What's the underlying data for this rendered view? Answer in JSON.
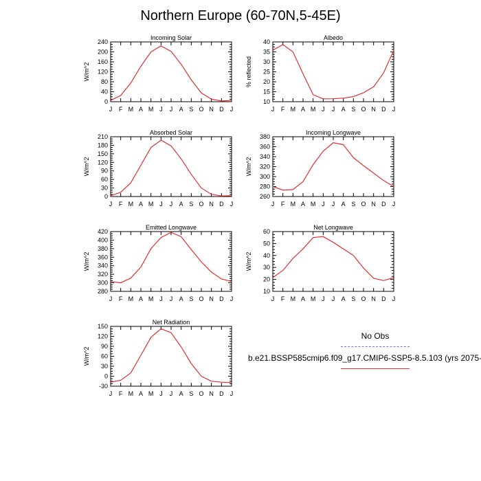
{
  "title": "Northern Europe (60-70N,5-45E)",
  "legend": {
    "obs_label": "No Obs",
    "case_label": "b.e21.BSSP585cmip6.f09_g17.CMIP6-SSP5-8.5.103 (yrs 2075-",
    "obs_color": "#6b6bff",
    "case_color": "#e03030"
  },
  "month_labels": [
    "J",
    "F",
    "M",
    "A",
    "M",
    "J",
    "J",
    "A",
    "S",
    "O",
    "N",
    "D",
    "J"
  ],
  "chart_data": [
    {
      "type": "line",
      "title": "Incoming Solar",
      "ylabel": "W/m^2",
      "ylim": [
        0,
        240
      ],
      "yticks": [
        0,
        40,
        80,
        120,
        160,
        200,
        240
      ],
      "values": [
        5,
        25,
        75,
        142,
        200,
        224,
        202,
        150,
        88,
        35,
        10,
        3,
        5
      ]
    },
    {
      "type": "line",
      "title": "Albedo",
      "ylabel": "% reflected",
      "ylim": [
        10,
        40
      ],
      "yticks": [
        10,
        15,
        20,
        25,
        30,
        35,
        40
      ],
      "values": [
        35.8,
        38.7,
        35.0,
        24.0,
        13.5,
        11.4,
        11.5,
        11.8,
        12.6,
        14.5,
        17.5,
        24.5,
        35.8
      ]
    },
    {
      "type": "line",
      "title": "Absorbed Solar",
      "ylabel": "W/m^2",
      "ylim": [
        0,
        210
      ],
      "yticks": [
        0,
        30,
        60,
        90,
        120,
        150,
        180,
        210
      ],
      "values": [
        3,
        15,
        48,
        110,
        172,
        198,
        178,
        132,
        78,
        30,
        8,
        2,
        3
      ]
    },
    {
      "type": "line",
      "title": "Incoming Longwave",
      "ylabel": "W/m^2",
      "ylim": [
        260,
        380
      ],
      "yticks": [
        260,
        280,
        300,
        320,
        340,
        360,
        380
      ],
      "values": [
        280,
        273,
        274,
        290,
        324,
        351,
        368,
        364,
        338,
        322,
        307,
        292,
        280
      ]
    },
    {
      "type": "line",
      "title": "Emitted Longwave",
      "ylabel": "W/m^2",
      "ylim": [
        280,
        420
      ],
      "yticks": [
        280,
        300,
        320,
        340,
        360,
        380,
        400,
        420
      ],
      "values": [
        303,
        300,
        311,
        337,
        380,
        406,
        418,
        408,
        378,
        349,
        325,
        309,
        303
      ]
    },
    {
      "type": "line",
      "title": "Net Longwave",
      "ylabel": "W/m^2",
      "ylim": [
        10,
        60
      ],
      "yticks": [
        10,
        20,
        30,
        40,
        50,
        60
      ],
      "values": [
        21.5,
        27.5,
        37.5,
        45.5,
        55.0,
        55.8,
        51.0,
        45.5,
        40.0,
        29.5,
        21.0,
        19.0,
        21.5
      ]
    },
    {
      "type": "line",
      "title": "Net Radiation",
      "ylabel": "W/m^2",
      "ylim": [
        -30,
        150
      ],
      "yticks": [
        -30,
        0,
        30,
        60,
        90,
        120,
        150
      ],
      "values": [
        -18,
        -12,
        10,
        63,
        117,
        143,
        131,
        88,
        38,
        0,
        -15,
        -18,
        -19
      ]
    }
  ]
}
